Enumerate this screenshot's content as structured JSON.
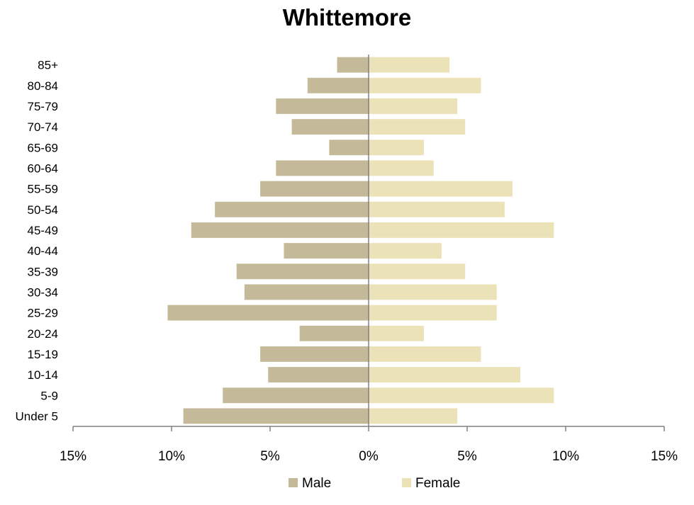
{
  "chart_data": {
    "type": "bar",
    "orientation": "horizontal",
    "title": "Whittemore",
    "xlabel": "",
    "ylabel": "",
    "categories": [
      "Under 5",
      "5-9",
      "10-14",
      "15-19",
      "20-24",
      "25-29",
      "30-34",
      "35-39",
      "40-44",
      "45-49",
      "50-54",
      "55-59",
      "60-64",
      "65-69",
      "70-74",
      "75-79",
      "80-84",
      "85+"
    ],
    "series": [
      {
        "name": "Male",
        "color": "#c4b998",
        "values": [
          -9.4,
          -7.4,
          -5.1,
          -5.5,
          -3.5,
          -10.2,
          -6.3,
          -6.7,
          -4.3,
          -9.0,
          -7.8,
          -5.5,
          -4.7,
          -2.0,
          -3.9,
          -4.7,
          -3.1,
          -1.6
        ]
      },
      {
        "name": "Female",
        "color": "#ebe2b7",
        "values": [
          4.5,
          9.4,
          7.7,
          5.7,
          2.8,
          6.5,
          6.5,
          4.9,
          3.7,
          9.4,
          6.9,
          7.3,
          3.3,
          2.8,
          4.9,
          4.5,
          5.7,
          4.1
        ]
      }
    ],
    "xlim": [
      -15,
      15
    ],
    "x_ticks": [
      -15,
      -10,
      -5,
      0,
      5,
      10,
      15
    ],
    "x_tick_labels": [
      "15%",
      "10%",
      "5%",
      "0%",
      "5%",
      "10%",
      "15%"
    ],
    "grid": false,
    "legend_position": "bottom",
    "center_line_color": "#808080",
    "axis_color": "#808080"
  }
}
